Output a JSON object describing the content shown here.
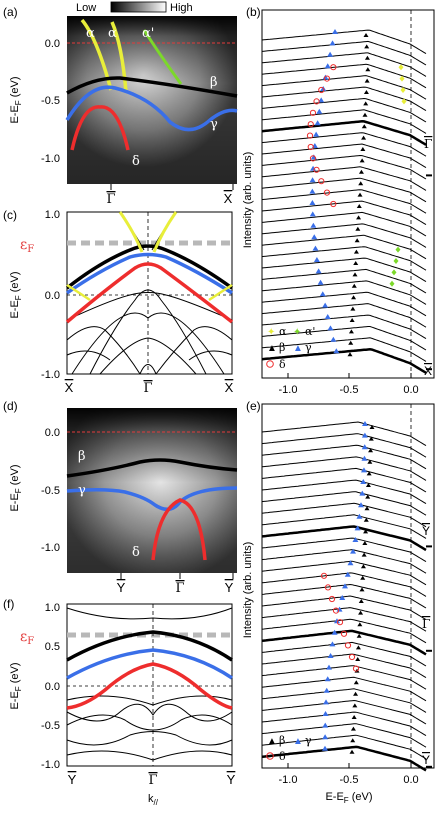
{
  "colorbar": {
    "low": "Low",
    "high": "High"
  },
  "colors": {
    "black": "#000000",
    "blue": "#3a6fe8",
    "red": "#ee2d2d",
    "yellow": "#e8ee3a",
    "green": "#7cd82a",
    "ef_dash": "#b8b8b8",
    "zero_red": "#e23b3b"
  },
  "chart_data": [
    {
      "id": "a",
      "type": "heatmap",
      "panel_label": "(a)",
      "ylabel": "E-E_F (eV)",
      "ylim": [
        -1.25,
        0.1
      ],
      "yticks": [
        "0.0",
        "-0.5",
        "-1.0"
      ],
      "xticks": [
        "Γ",
        "X"
      ],
      "band_labels": [
        "α",
        "α",
        "α'",
        "β",
        "γ",
        "δ"
      ],
      "bands": [
        {
          "name": "β",
          "color": "black",
          "k": [
            0,
            0.2,
            0.4,
            0.6,
            0.8,
            1.0
          ],
          "E": [
            -0.35,
            -0.3,
            -0.32,
            -0.36,
            -0.4,
            -0.42
          ]
        },
        {
          "name": "γ",
          "color": "blue",
          "k": [
            0,
            0.15,
            0.3,
            0.5,
            0.7,
            0.85,
            1.0
          ],
          "E": [
            -0.68,
            -0.45,
            -0.38,
            -0.45,
            -0.62,
            -0.68,
            -0.55
          ]
        },
        {
          "name": "δ",
          "color": "red",
          "k": [
            0,
            0.1,
            0.2,
            0.3,
            0.4,
            0.5
          ],
          "E": [
            -1.05,
            -0.75,
            -0.62,
            -0.62,
            -0.75,
            -1.05
          ]
        }
      ]
    },
    {
      "id": "b",
      "type": "line",
      "panel_label": "(b)",
      "ylabel": "Intensity (arb. units)",
      "xlim": [
        -1.3,
        0.1
      ],
      "xticks": [
        "-1.0",
        "-0.5",
        "0.0"
      ],
      "end_labels": [
        "Γ",
        "X"
      ],
      "legend": [
        "α",
        "α'",
        "β",
        "γ",
        "δ"
      ]
    },
    {
      "id": "c",
      "type": "line",
      "panel_label": "(c)",
      "ylabel": "E-E_F (eV)",
      "ylim": [
        -1.0,
        1.1
      ],
      "yticks": [
        "1.0",
        "0.0",
        "-1.0"
      ],
      "xticks": [
        "X",
        "Γ",
        "X"
      ],
      "ef_label": "ε_F",
      "ef_value": 0.6
    },
    {
      "id": "d",
      "type": "heatmap",
      "panel_label": "(d)",
      "ylabel": "E-E_F (eV)",
      "ylim": [
        -1.2,
        0.1
      ],
      "yticks": [
        "0.0",
        "-0.5",
        "-1.0"
      ],
      "xticks": [
        "Y",
        "Γ",
        "Y"
      ],
      "band_labels": [
        "β",
        "γ",
        "δ"
      ]
    },
    {
      "id": "e",
      "type": "line",
      "panel_label": "(e)",
      "ylabel": "Intensity (arb. units)",
      "xlabel": "E-E_F (eV)",
      "xlim": [
        -1.3,
        0.1
      ],
      "xticks": [
        "-1.0",
        "-0.5",
        "0.0"
      ],
      "end_labels": [
        "Y",
        "Γ",
        "Y"
      ],
      "legend": [
        "β",
        "γ",
        "δ"
      ]
    },
    {
      "id": "f",
      "type": "line",
      "panel_label": "(f)",
      "ylabel": "E-E_F (eV)",
      "xlabel": "k_//",
      "ylim": [
        -1.0,
        1.05
      ],
      "yticks": [
        "1.0",
        "0.5",
        "0.0",
        "-0.5",
        "-1.0"
      ],
      "xticks": [
        "Y",
        "Γ",
        "Y"
      ],
      "ef_label": "ε_F",
      "ef_value": 0.62
    }
  ]
}
